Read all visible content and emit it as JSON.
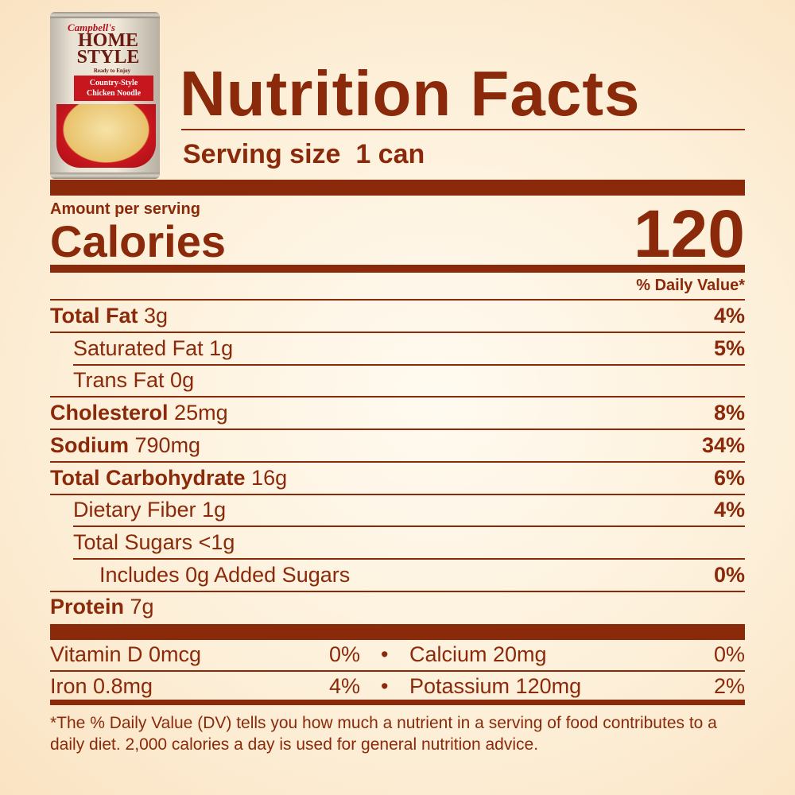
{
  "product_image": {
    "brand": "Campbell's",
    "line": "HOME STYLE",
    "tagline": "Ready to Enjoy",
    "variety": "Country-Style Chicken Noodle"
  },
  "title": "Nutrition Facts",
  "serving_size": "Serving size  1 can",
  "amount_per_serving": "Amount per serving",
  "calories_label": "Calories",
  "calories_value": "120",
  "daily_value_header": "% Daily Value*",
  "nutrients": [
    {
      "name": "Total Fat",
      "amount": "3g",
      "dv": "4%",
      "bold": true,
      "indent": 0
    },
    {
      "name": "Saturated Fat",
      "amount": "1g",
      "dv": "5%",
      "bold": false,
      "indent": 1
    },
    {
      "name": "Trans Fat",
      "amount": "0g",
      "dv": "",
      "bold": false,
      "indent": 1
    },
    {
      "name": "Cholesterol",
      "amount": "25mg",
      "dv": "8%",
      "bold": true,
      "indent": 0
    },
    {
      "name": "Sodium",
      "amount": "790mg",
      "dv": "34%",
      "bold": true,
      "indent": 0
    },
    {
      "name": "Total Carbohydrate",
      "amount": "16g",
      "dv": "6%",
      "bold": true,
      "indent": 0
    },
    {
      "name": "Dietary Fiber",
      "amount": "1g",
      "dv": "4%",
      "bold": false,
      "indent": 1
    },
    {
      "name": "Total Sugars",
      "amount": "<1g",
      "dv": "",
      "bold": false,
      "indent": 1
    },
    {
      "name": "Includes 0g Added Sugars",
      "amount": "",
      "dv": "0%",
      "bold": false,
      "indent": 2
    },
    {
      "name": "Protein",
      "amount": "7g",
      "dv": "",
      "bold": true,
      "indent": 0
    }
  ],
  "vitamins": [
    [
      {
        "label": "Vitamin D 0mcg",
        "dv": "0%"
      },
      {
        "label": "Calcium 20mg",
        "dv": "0%"
      }
    ],
    [
      {
        "label": "Iron 0.8mg",
        "dv": "4%"
      },
      {
        "label": "Potassium 120mg",
        "dv": "2%"
      }
    ]
  ],
  "bullet": "•",
  "footnote": "*The % Daily Value (DV) tells you how much a nutrient in a serving of food contributes to a daily diet. 2,000 calories a day is used for general nutrition advice.",
  "colors": {
    "text": "#8a2a0a",
    "background": "#fdf0da"
  }
}
